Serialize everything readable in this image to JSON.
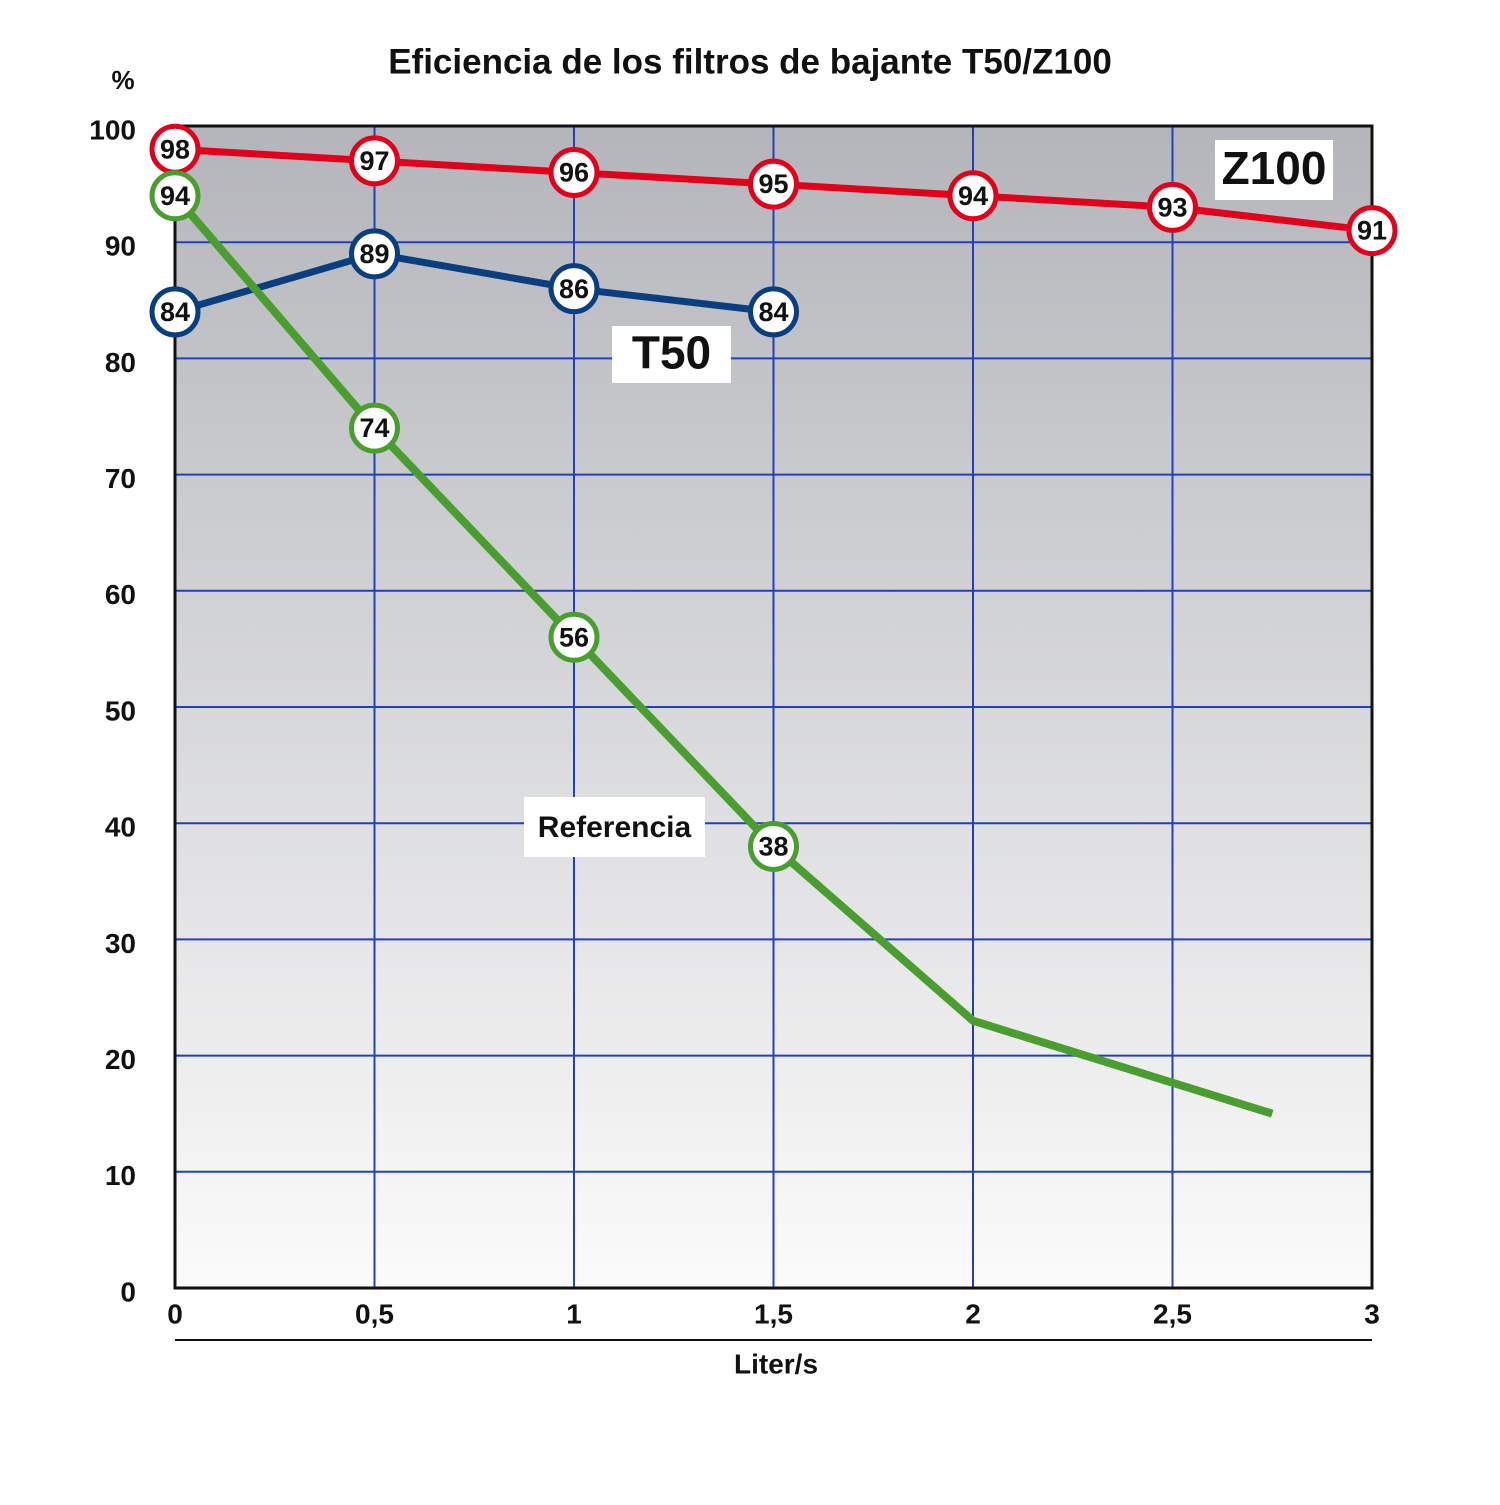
{
  "chart_data": {
    "type": "line",
    "title": "Eficiencia de los filtros de bajante T50/Z100",
    "y_label": "%",
    "x_label": "Liter/s",
    "xlim": [
      0,
      3
    ],
    "ylim": [
      0,
      100
    ],
    "xticks": [
      0,
      {
        "value": 0.5,
        "label": "0,5"
      },
      1,
      {
        "value": 1.5,
        "label": "1,5"
      },
      2,
      {
        "value": 2.5,
        "label": "2,5"
      },
      3
    ],
    "yticks": [
      0,
      10,
      20,
      30,
      40,
      50,
      60,
      70,
      80,
      90,
      100
    ],
    "grid": true,
    "series": [
      {
        "name": "Z100",
        "color": "#e0001b",
        "x": [
          0,
          0.5,
          1,
          1.5,
          2,
          2.5,
          3
        ],
        "values": [
          98,
          97,
          96,
          95,
          94,
          93,
          91
        ]
      },
      {
        "name": "T50",
        "color": "#0a3f7f",
        "x": [
          0,
          0.5,
          1,
          1.5
        ],
        "values": [
          84,
          89,
          86,
          84
        ]
      },
      {
        "name": "Referencia",
        "color": "#4a9d2f",
        "x": [
          0,
          0.5,
          1,
          1.5,
          2,
          2.75
        ],
        "values": [
          94,
          74,
          56,
          38,
          23,
          15
        ],
        "value_labels": [
          "94",
          "74",
          "56",
          "38",
          null,
          null
        ]
      }
    ]
  }
}
